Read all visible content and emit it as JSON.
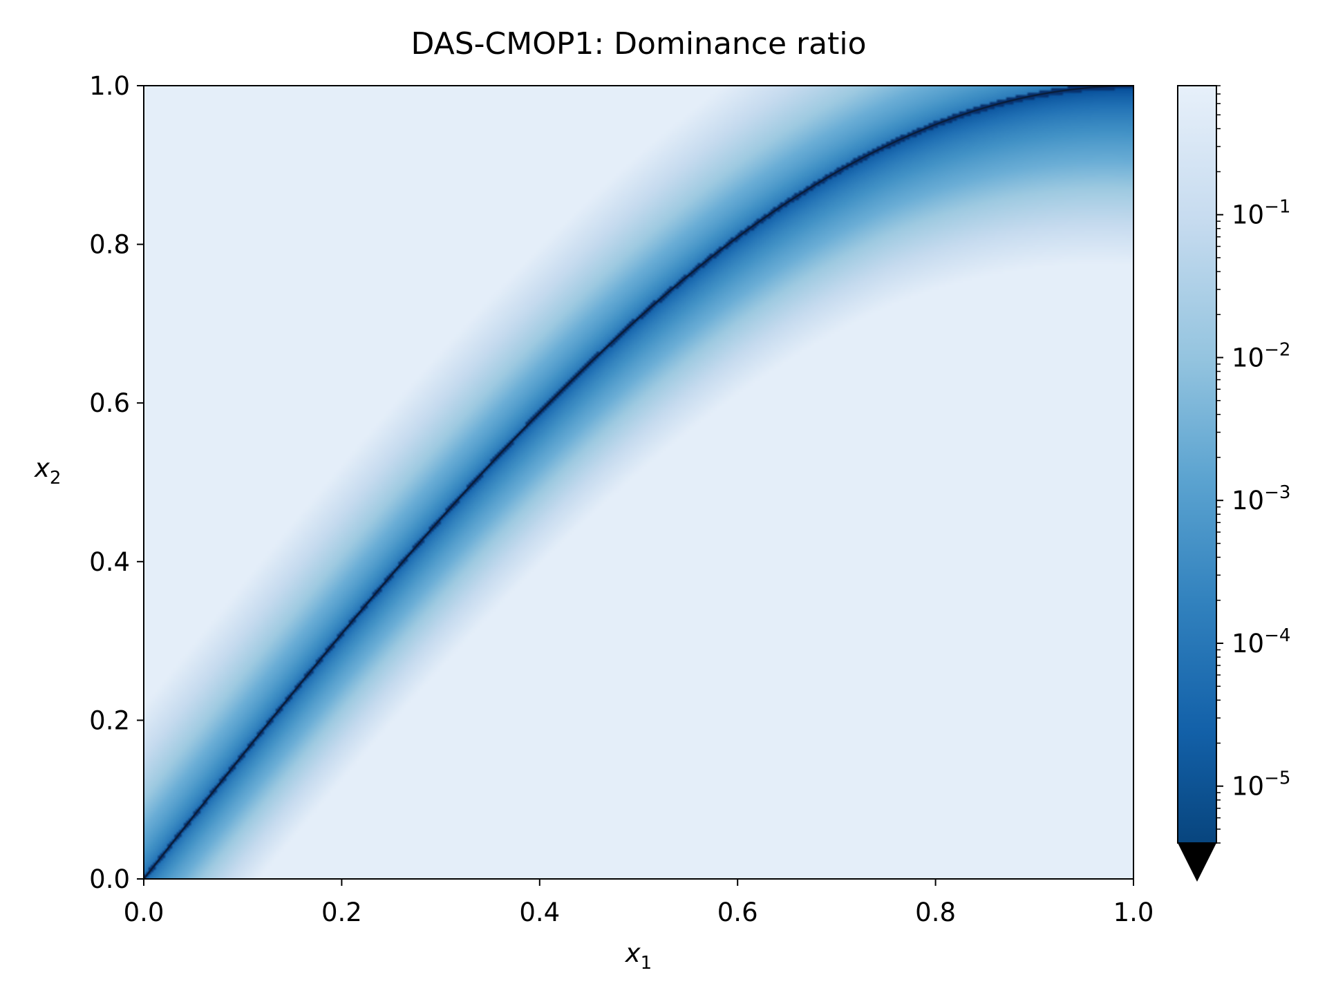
{
  "chart_data": {
    "type": "heatmap",
    "title": "DAS-CMOP1: Dominance ratio",
    "xlabel": {
      "base": "x",
      "sub": "1"
    },
    "ylabel": {
      "base": "x",
      "sub": "2"
    },
    "xlim": [
      0.0,
      1.0
    ],
    "ylim": [
      0.0,
      1.0
    ],
    "xticks": [
      "0.0",
      "0.2",
      "0.4",
      "0.6",
      "0.8",
      "1.0"
    ],
    "yticks": [
      "0.0",
      "0.2",
      "0.4",
      "0.6",
      "0.8",
      "1.0"
    ],
    "grid": false,
    "colormap": "Blues_r",
    "colorbar": {
      "scale": "log",
      "range": [
        4e-06,
        0.8
      ],
      "extend": "min",
      "extend_color": "#000000",
      "ticks": [
        {
          "value": 0.1,
          "base": "10",
          "exp": "−1"
        },
        {
          "value": 0.01,
          "base": "10",
          "exp": "−2"
        },
        {
          "value": 0.001,
          "base": "10",
          "exp": "−3"
        },
        {
          "value": 0.0001,
          "base": "10",
          "exp": "−4"
        },
        {
          "value": 1e-05,
          "base": "10",
          "exp": "−5"
        }
      ]
    },
    "boundary_curve": {
      "description": "Pareto-optimal boundary where ratio drops to minimum",
      "x": [
        0.0,
        0.1,
        0.2,
        0.3,
        0.4,
        0.5,
        0.6,
        0.7,
        0.8,
        0.9,
        1.0
      ],
      "y": [
        0.0,
        0.156,
        0.309,
        0.454,
        0.588,
        0.707,
        0.809,
        0.891,
        0.951,
        0.988,
        1.0
      ]
    },
    "colors": {
      "dark": "#08306b",
      "mid": "#4292c6",
      "light": "#e2edf8"
    }
  }
}
